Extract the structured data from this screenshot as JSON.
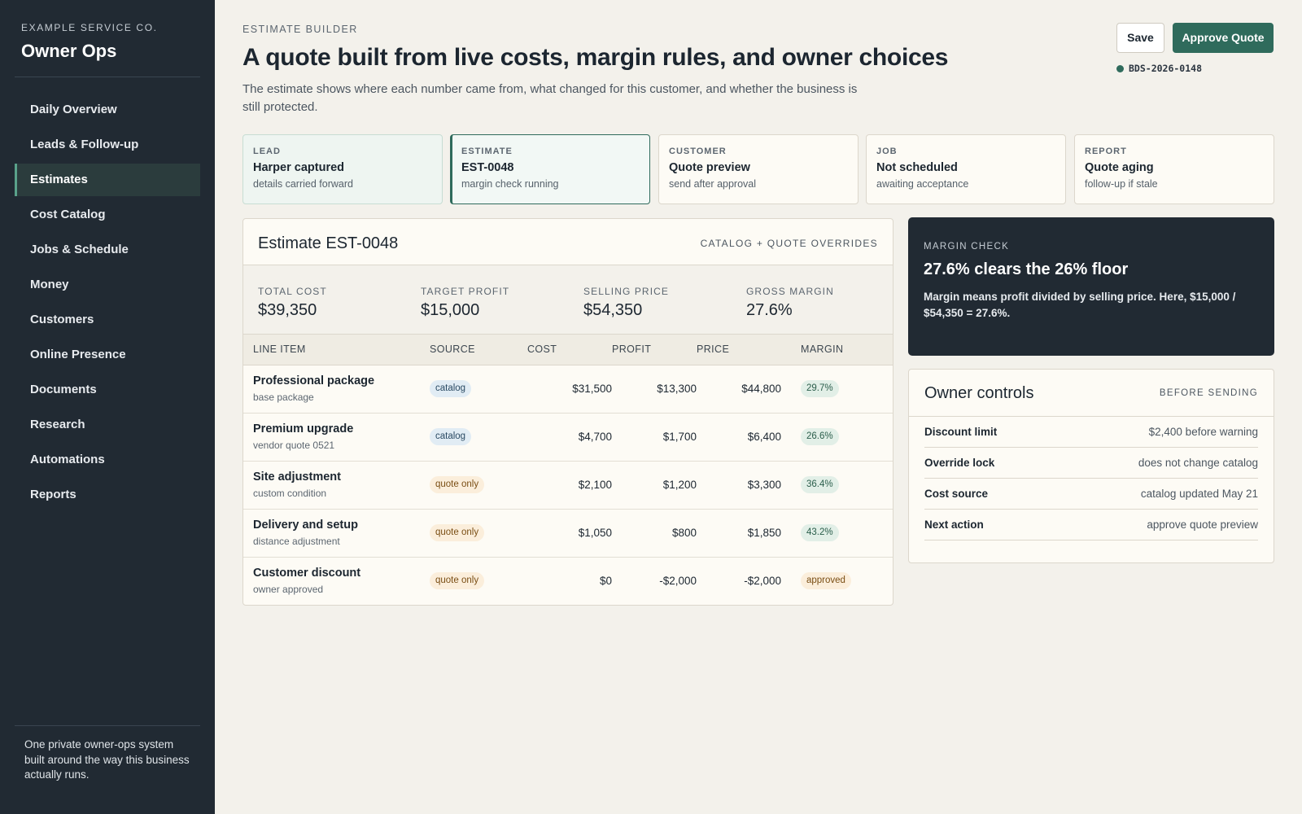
{
  "sidebar": {
    "company": "EXAMPLE SERVICE CO.",
    "app_title": "Owner Ops",
    "items": [
      {
        "label": "Daily Overview"
      },
      {
        "label": "Leads & Follow-up"
      },
      {
        "label": "Estimates",
        "active": true
      },
      {
        "label": "Cost Catalog"
      },
      {
        "label": "Jobs & Schedule"
      },
      {
        "label": "Money"
      },
      {
        "label": "Customers"
      },
      {
        "label": "Online Presence"
      },
      {
        "label": "Documents"
      },
      {
        "label": "Research"
      },
      {
        "label": "Automations"
      },
      {
        "label": "Reports"
      }
    ],
    "footer": "One private owner-ops system built around the way this business actually runs."
  },
  "header": {
    "eyebrow": "ESTIMATE BUILDER",
    "title": "A quote built from live costs, margin rules, and owner choices",
    "subtitle": "The estimate shows where each number came from, what changed for this customer, and whether the business is still protected.",
    "save_label": "Save",
    "approve_label": "Approve Quote",
    "reference": "BDS-2026-0148"
  },
  "steps": [
    {
      "label": "LEAD",
      "title": "Harper captured",
      "note": "details carried forward",
      "state": "done"
    },
    {
      "label": "ESTIMATE",
      "title": "EST-0048",
      "note": "margin check running",
      "state": "current"
    },
    {
      "label": "CUSTOMER",
      "title": "Quote preview",
      "note": "send after approval",
      "state": "pending"
    },
    {
      "label": "JOB",
      "title": "Not scheduled",
      "note": "awaiting acceptance",
      "state": "pending"
    },
    {
      "label": "REPORT",
      "title": "Quote aging",
      "note": "follow-up if stale",
      "state": "pending"
    }
  ],
  "estimate": {
    "title": "Estimate EST-0048",
    "tag": "CATALOG + QUOTE OVERRIDES",
    "metrics": [
      {
        "label": "TOTAL COST",
        "value": "$39,350"
      },
      {
        "label": "TARGET PROFIT",
        "value": "$15,000"
      },
      {
        "label": "SELLING PRICE",
        "value": "$54,350"
      },
      {
        "label": "GROSS MARGIN",
        "value": "27.6%"
      }
    ],
    "columns": [
      "LINE ITEM",
      "SOURCE",
      "COST",
      "PROFIT",
      "PRICE",
      "MARGIN"
    ],
    "lines": [
      {
        "name": "Professional package",
        "sub": "base package",
        "source": "catalog",
        "cost": "$31,500",
        "profit": "$13,300",
        "price": "$44,800",
        "margin": "29.7%"
      },
      {
        "name": "Premium upgrade",
        "sub": "vendor quote 0521",
        "source": "catalog",
        "cost": "$4,700",
        "profit": "$1,700",
        "price": "$6,400",
        "margin": "26.6%"
      },
      {
        "name": "Site adjustment",
        "sub": "custom condition",
        "source": "quote only",
        "cost": "$2,100",
        "profit": "$1,200",
        "price": "$3,300",
        "margin": "36.4%"
      },
      {
        "name": "Delivery and setup",
        "sub": "distance adjustment",
        "source": "quote only",
        "cost": "$1,050",
        "profit": "$800",
        "price": "$1,850",
        "margin": "43.2%"
      },
      {
        "name": "Customer discount",
        "sub": "owner approved",
        "source": "quote only",
        "cost": "$0",
        "profit": "-$2,000",
        "price": "-$2,000",
        "margin": "approved"
      }
    ]
  },
  "margin_check": {
    "label": "MARGIN CHECK",
    "title": "27.6% clears the 26% floor",
    "body": "Margin means profit divided by selling price. Here, $15,000 / $54,350 = 27.6%."
  },
  "owner_controls": {
    "title": "Owner controls",
    "tag": "BEFORE SENDING",
    "rows": [
      {
        "key": "Discount limit",
        "value": "$2,400 before warning"
      },
      {
        "key": "Override lock",
        "value": "does not change catalog"
      },
      {
        "key": "Cost source",
        "value": "catalog updated May 21"
      },
      {
        "key": "Next action",
        "value": "approve quote preview"
      }
    ]
  }
}
